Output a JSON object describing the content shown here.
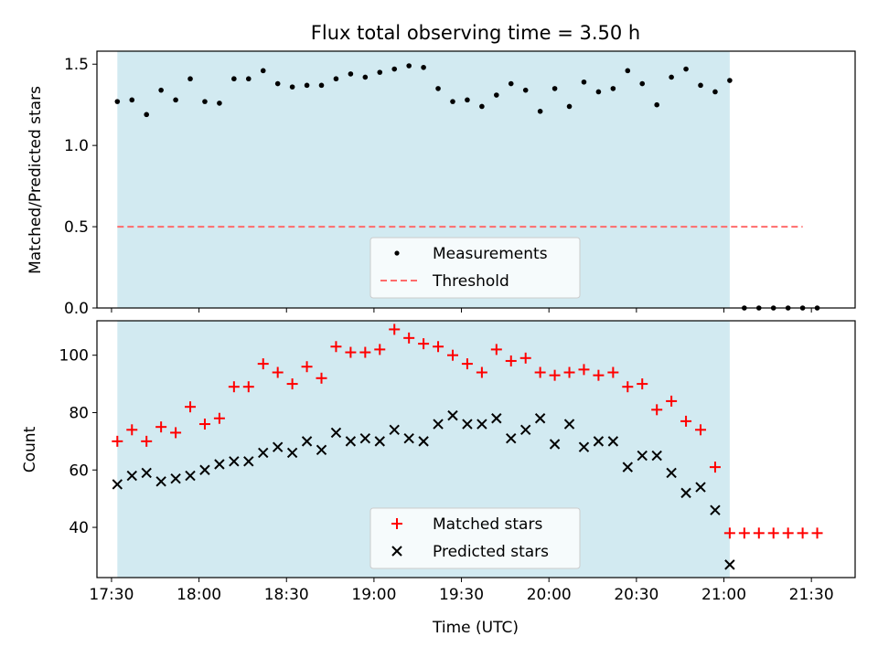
{
  "chart_data": [
    {
      "type": "scatter",
      "title": "Flux total observing time = 3.50 h",
      "ylabel": "Matched/Predicted stars",
      "xlabel": "",
      "xlim": [
        17.4167,
        21.75
      ],
      "ylim": [
        0,
        1.58
      ],
      "yticks": [
        0,
        0.5,
        1.0,
        1.5
      ],
      "ytick_labels": [
        "0.0",
        "0.5",
        "1.0",
        "1.5"
      ],
      "shaded_span": {
        "start": 17.5333,
        "end": 21.0333,
        "color": "#add8e6"
      },
      "legend": {
        "placement": "lower-center",
        "entries": [
          "Measurements",
          "Threshold"
        ]
      },
      "series": [
        {
          "name": "Measurements",
          "marker": "dot",
          "color": "#000000",
          "x": [
            17.5333,
            17.6167,
            17.7,
            17.7833,
            17.8667,
            17.95,
            18.0333,
            18.1167,
            18.2,
            18.2833,
            18.3667,
            18.45,
            18.5333,
            18.6167,
            18.7,
            18.7833,
            18.8667,
            18.95,
            19.0333,
            19.1167,
            19.2,
            19.2833,
            19.3667,
            19.45,
            19.5333,
            19.6167,
            19.7,
            19.7833,
            19.8667,
            19.95,
            20.0333,
            20.1167,
            20.2,
            20.2833,
            20.3667,
            20.45,
            20.5333,
            20.6167,
            20.7,
            20.7833,
            20.8667,
            20.95,
            21.0333,
            21.1167,
            21.2,
            21.2833,
            21.3667,
            21.45,
            21.5333
          ],
          "y": [
            1.27,
            1.28,
            1.19,
            1.34,
            1.28,
            1.41,
            1.27,
            1.26,
            1.41,
            1.41,
            1.46,
            1.38,
            1.36,
            1.37,
            1.37,
            1.41,
            1.44,
            1.42,
            1.45,
            1.47,
            1.49,
            1.48,
            1.35,
            1.27,
            1.28,
            1.24,
            1.31,
            1.38,
            1.34,
            1.21,
            1.35,
            1.24,
            1.39,
            1.33,
            1.35,
            1.46,
            1.38,
            1.25,
            1.42,
            1.47,
            1.37,
            1.33,
            1.4,
            0,
            0,
            0,
            0,
            0,
            0
          ]
        },
        {
          "name": "Threshold",
          "style": "dashed",
          "color": "#ff6b6b",
          "x": [
            17.5333,
            21.45
          ],
          "y": [
            0.5,
            0.5
          ]
        }
      ]
    },
    {
      "type": "scatter",
      "title": "",
      "ylabel": "Count",
      "xlabel": "Time (UTC)",
      "xlim": [
        17.4167,
        21.75
      ],
      "ylim": [
        22.5,
        112
      ],
      "yticks": [
        40,
        60,
        80,
        100
      ],
      "ytick_labels": [
        "40",
        "60",
        "80",
        "100"
      ],
      "xticks": [
        17.5,
        18.0,
        18.5,
        19.0,
        19.5,
        20.0,
        20.5,
        21.0,
        21.5
      ],
      "xtick_labels": [
        "17:30",
        "18:00",
        "18:30",
        "19:00",
        "19:30",
        "20:00",
        "20:30",
        "21:00",
        "21:30"
      ],
      "shaded_span": {
        "start": 17.5333,
        "end": 21.0333,
        "color": "#add8e6"
      },
      "legend": {
        "placement": "lower-center",
        "entries": [
          "Matched stars",
          "Predicted stars"
        ]
      },
      "series": [
        {
          "name": "Matched stars",
          "marker": "plus",
          "color": "#ff0000",
          "x": [
            17.5333,
            17.6167,
            17.7,
            17.7833,
            17.8667,
            17.95,
            18.0333,
            18.1167,
            18.2,
            18.2833,
            18.3667,
            18.45,
            18.5333,
            18.6167,
            18.7,
            18.7833,
            18.8667,
            18.95,
            19.0333,
            19.1167,
            19.2,
            19.2833,
            19.3667,
            19.45,
            19.5333,
            19.6167,
            19.7,
            19.7833,
            19.8667,
            19.95,
            20.0333,
            20.1167,
            20.2,
            20.2833,
            20.3667,
            20.45,
            20.5333,
            20.6167,
            20.7,
            20.7833,
            20.8667,
            20.95,
            21.0333,
            21.1167,
            21.2,
            21.2833,
            21.3667,
            21.45,
            21.5333
          ],
          "y": [
            70,
            74,
            70,
            75,
            73,
            82,
            76,
            78,
            89,
            89,
            97,
            94,
            90,
            96,
            92,
            103,
            101,
            101,
            102,
            109,
            106,
            104,
            103,
            100,
            97,
            94,
            102,
            98,
            99,
            94,
            93,
            94,
            95,
            93,
            94,
            89,
            90,
            81,
            84,
            77,
            74,
            61,
            38,
            38,
            38,
            38,
            38,
            38,
            38
          ]
        },
        {
          "name": "Predicted stars",
          "marker": "x",
          "color": "#000000",
          "x": [
            17.5333,
            17.6167,
            17.7,
            17.7833,
            17.8667,
            17.95,
            18.0333,
            18.1167,
            18.2,
            18.2833,
            18.3667,
            18.45,
            18.5333,
            18.6167,
            18.7,
            18.7833,
            18.8667,
            18.95,
            19.0333,
            19.1167,
            19.2,
            19.2833,
            19.3667,
            19.45,
            19.5333,
            19.6167,
            19.7,
            19.7833,
            19.8667,
            19.95,
            20.0333,
            20.1167,
            20.2,
            20.2833,
            20.3667,
            20.45,
            20.5333,
            20.6167,
            20.7,
            20.7833,
            20.8667,
            20.95,
            21.0333
          ],
          "y": [
            55,
            58,
            59,
            56,
            57,
            58,
            60,
            62,
            63,
            63,
            66,
            68,
            66,
            70,
            67,
            73,
            70,
            71,
            70,
            74,
            71,
            70,
            76,
            79,
            76,
            76,
            78,
            71,
            74,
            78,
            69,
            76,
            68,
            70,
            70,
            61,
            65,
            65,
            59,
            52,
            54,
            46,
            27
          ]
        }
      ]
    }
  ]
}
